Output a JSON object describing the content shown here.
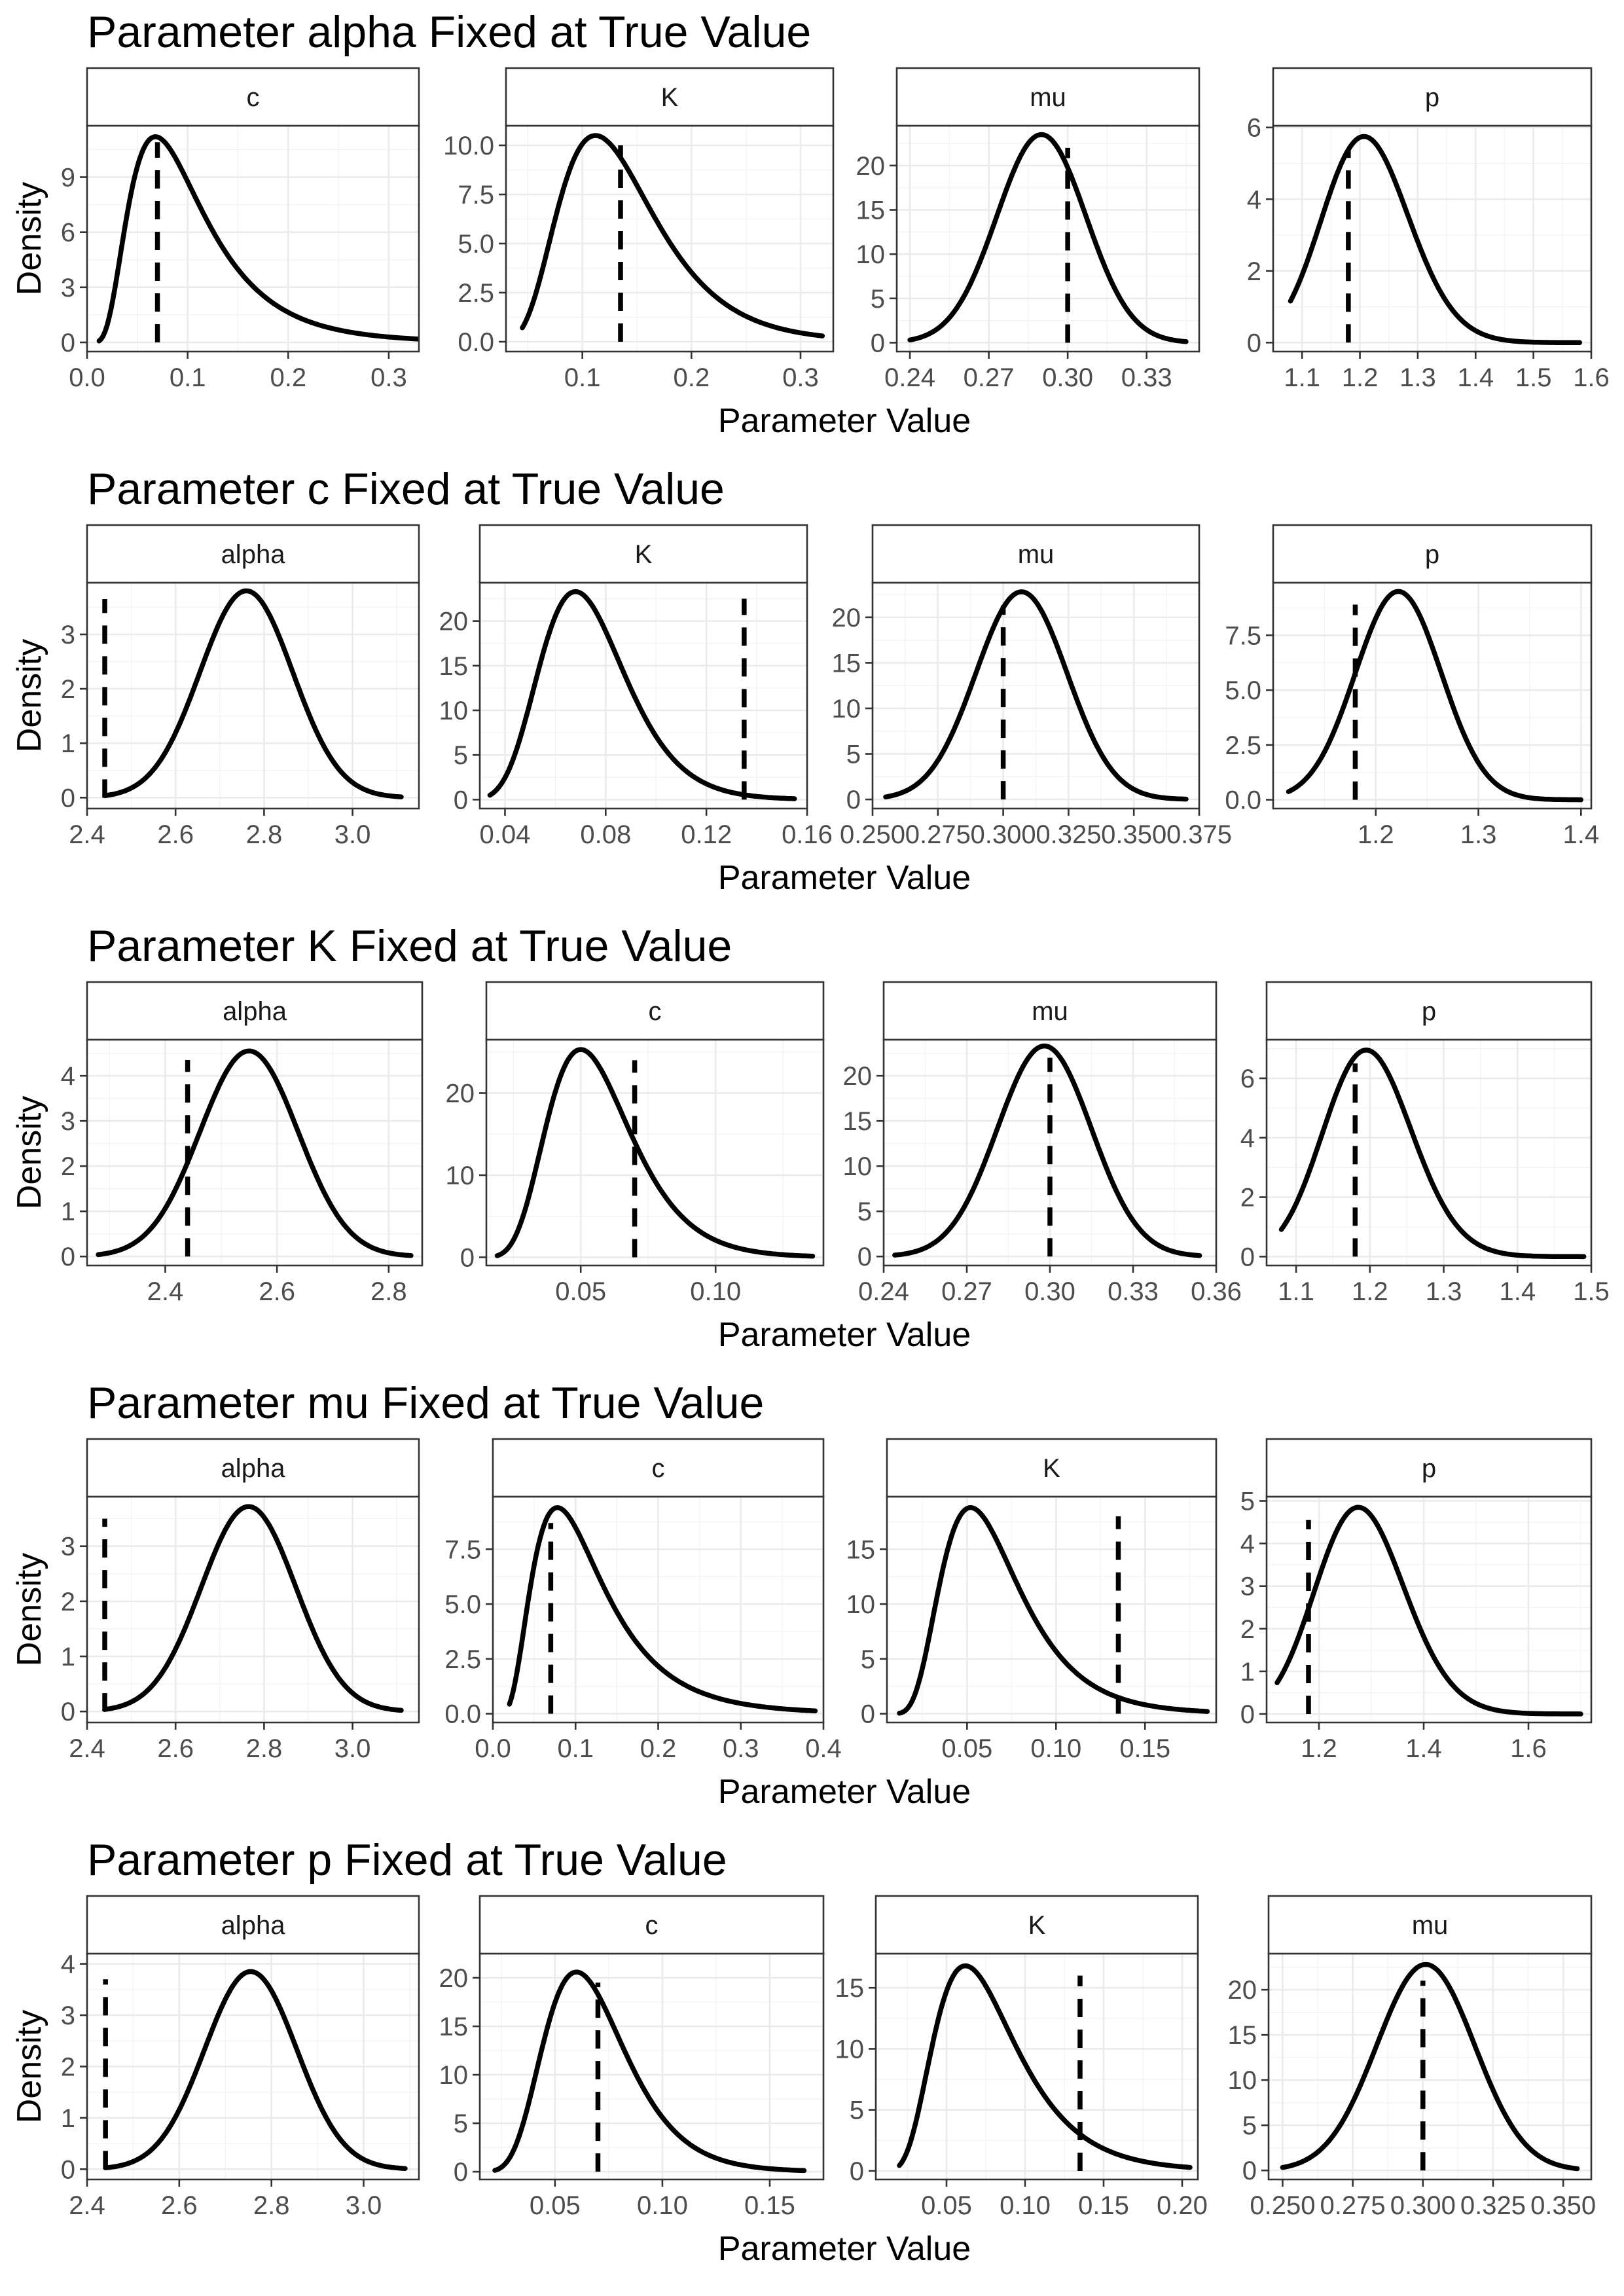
{
  "figure": {
    "x_axis_title": "Parameter Value",
    "y_axis_title": "Density"
  },
  "chart_data": [
    {
      "type": "line",
      "title": "Parameter alpha Fixed at True Value",
      "panels": [
        {
          "strip": "c",
          "xlim": [
            0.0,
            0.33
          ],
          "ylim": [
            -0.5,
            11.8
          ],
          "xticks": [
            0.0,
            0.1,
            0.2,
            0.3
          ],
          "xtick_labels": [
            "0.0",
            "0.1",
            "0.2",
            "0.3"
          ],
          "yticks": [
            0,
            3,
            6,
            9
          ],
          "ytick_labels": [
            "0",
            "3",
            "6",
            "9"
          ],
          "density": {
            "shape": "gamma",
            "mode": 0.068,
            "peak": 11.2,
            "sd": 0.045,
            "from": 0.012,
            "to": 0.33
          },
          "true_value": 0.07,
          "true_line_top": 10.9
        },
        {
          "strip": "K",
          "xlim": [
            0.03,
            0.33
          ],
          "ylim": [
            -0.5,
            11.0
          ],
          "xticks": [
            0.1,
            0.2,
            0.3
          ],
          "xtick_labels": [
            "0.1",
            "0.2",
            "0.3"
          ],
          "yticks": [
            0.0,
            2.5,
            5.0,
            7.5,
            10.0
          ],
          "ytick_labels": [
            "0.0",
            "2.5",
            "5.0",
            "7.5",
            "10.0"
          ],
          "density": {
            "shape": "gamma",
            "mode": 0.112,
            "peak": 10.5,
            "sd": 0.044,
            "from": 0.045,
            "to": 0.32
          },
          "true_value": 0.135,
          "true_line_top": 10.0
        },
        {
          "strip": "mu",
          "xlim": [
            0.235,
            0.35
          ],
          "ylim": [
            -1.0,
            24.5
          ],
          "xticks": [
            0.24,
            0.27,
            0.3,
            0.33
          ],
          "xtick_labels": [
            "0.24",
            "0.27",
            "0.30",
            "0.33"
          ],
          "yticks": [
            0,
            5,
            10,
            15,
            20
          ],
          "ytick_labels": [
            "0",
            "5",
            "10",
            "15",
            "20"
          ],
          "density": {
            "shape": "normal",
            "mode": 0.29,
            "peak": 23.5,
            "sd": 0.017,
            "from": 0.24,
            "to": 0.345
          },
          "true_value": 0.3,
          "true_line_top": 22.0
        },
        {
          "strip": "p",
          "xlim": [
            1.05,
            1.6
          ],
          "ylim": [
            -0.25,
            6.05
          ],
          "xticks": [
            1.1,
            1.2,
            1.3,
            1.4,
            1.5,
            1.6
          ],
          "xtick_labels": [
            "1.1",
            "1.2",
            "1.3",
            "1.4",
            "1.5",
            "1.6"
          ],
          "yticks": [
            0,
            2,
            4,
            6
          ],
          "ytick_labels": [
            "0",
            "2",
            "4",
            "6"
          ],
          "density": {
            "shape": "gamma",
            "mode": 1.207,
            "peak": 5.75,
            "sd": 0.075,
            "from": 1.08,
            "to": 1.58
          },
          "true_value": 1.18,
          "true_line_top": 5.4
        }
      ]
    },
    {
      "type": "line",
      "title": "Parameter c Fixed at True Value",
      "panels": [
        {
          "strip": "alpha",
          "xlim": [
            2.4,
            3.15
          ],
          "ylim": [
            -0.2,
            3.95
          ],
          "xticks": [
            2.4,
            2.6,
            2.8,
            3.0
          ],
          "xtick_labels": [
            "2.4",
            "2.6",
            "2.8",
            "3.0"
          ],
          "yticks": [
            0,
            1,
            2,
            3
          ],
          "ytick_labels": [
            "0",
            "1",
            "2",
            "3"
          ],
          "density": {
            "shape": "normal",
            "mode": 2.76,
            "peak": 3.8,
            "sd": 0.105,
            "from": 2.44,
            "to": 3.11
          },
          "true_value": 2.44,
          "true_line_top": 3.65
        },
        {
          "strip": "K",
          "xlim": [
            0.03,
            0.16
          ],
          "ylim": [
            -1.0,
            24.3
          ],
          "xticks": [
            0.04,
            0.08,
            0.12,
            0.16
          ],
          "xtick_labels": [
            "0.04",
            "0.08",
            "0.12",
            "0.16"
          ],
          "yticks": [
            0,
            5,
            10,
            15,
            20
          ],
          "ytick_labels": [
            "0",
            "5",
            "10",
            "15",
            "20"
          ],
          "density": {
            "shape": "gamma",
            "mode": 0.068,
            "peak": 23.3,
            "sd": 0.017,
            "from": 0.034,
            "to": 0.155
          },
          "true_value": 0.135,
          "true_line_top": 22.5
        },
        {
          "strip": "mu",
          "xlim": [
            0.25,
            0.375
          ],
          "ylim": [
            -1.0,
            23.8
          ],
          "xticks": [
            0.25,
            0.275,
            0.3,
            0.325,
            0.35,
            0.375
          ],
          "xtick_labels": [
            "0.250",
            "0.275",
            "0.300",
            "0.325",
            "0.350",
            "0.375"
          ],
          "yticks": [
            0,
            5,
            10,
            15,
            20
          ],
          "ytick_labels": [
            "0",
            "5",
            "10",
            "15",
            "20"
          ],
          "density": {
            "shape": "normal",
            "mode": 0.307,
            "peak": 22.8,
            "sd": 0.0175,
            "from": 0.255,
            "to": 0.37
          },
          "true_value": 0.3,
          "true_line_top": 21.3
        },
        {
          "strip": "p",
          "xlim": [
            1.1,
            1.41
          ],
          "ylim": [
            -0.4,
            9.9
          ],
          "xticks": [
            1.2,
            1.3,
            1.4
          ],
          "xtick_labels": [
            "1.2",
            "1.3",
            "1.4"
          ],
          "yticks": [
            0.0,
            2.5,
            5.0,
            7.5
          ],
          "ytick_labels": [
            "0.0",
            "2.5",
            "5.0",
            "7.5"
          ],
          "density": {
            "shape": "normal",
            "mode": 1.222,
            "peak": 9.5,
            "sd": 0.042,
            "from": 1.115,
            "to": 1.4
          },
          "true_value": 1.18,
          "true_line_top": 8.9
        }
      ]
    },
    {
      "type": "line",
      "title": "Parameter K Fixed at True Value",
      "panels": [
        {
          "strip": "alpha",
          "xlim": [
            2.26,
            2.86
          ],
          "ylim": [
            -0.2,
            4.8
          ],
          "xticks": [
            2.4,
            2.6,
            2.8
          ],
          "xtick_labels": [
            "2.4",
            "2.6",
            "2.8"
          ],
          "yticks": [
            0,
            1,
            2,
            3,
            4
          ],
          "ytick_labels": [
            "0",
            "1",
            "2",
            "3",
            "4"
          ],
          "density": {
            "shape": "normal",
            "mode": 2.55,
            "peak": 4.55,
            "sd": 0.088,
            "from": 2.28,
            "to": 2.84
          },
          "true_value": 2.44,
          "true_line_top": 4.35
        },
        {
          "strip": "c",
          "xlim": [
            0.015,
            0.14
          ],
          "ylim": [
            -1.0,
            26.5
          ],
          "xticks": [
            0.05,
            0.1
          ],
          "xtick_labels": [
            "0.05",
            "0.10"
          ],
          "yticks": [
            0,
            10,
            20
          ],
          "ytick_labels": [
            "0",
            "10",
            "20"
          ],
          "density": {
            "shape": "gamma",
            "mode": 0.05,
            "peak": 25.3,
            "sd": 0.0155,
            "from": 0.019,
            "to": 0.136
          },
          "true_value": 0.07,
          "true_line_top": 24.0
        },
        {
          "strip": "mu",
          "xlim": [
            0.24,
            0.36
          ],
          "ylim": [
            -1.0,
            24.0
          ],
          "xticks": [
            0.24,
            0.27,
            0.3,
            0.33,
            0.36
          ],
          "xtick_labels": [
            "0.24",
            "0.27",
            "0.30",
            "0.33",
            "0.36"
          ],
          "yticks": [
            0,
            5,
            10,
            15,
            20
          ],
          "ytick_labels": [
            "0",
            "5",
            "10",
            "15",
            "20"
          ],
          "density": {
            "shape": "normal",
            "mode": 0.298,
            "peak": 23.3,
            "sd": 0.017,
            "from": 0.244,
            "to": 0.354
          },
          "true_value": 0.3,
          "true_line_top": 22.0
        },
        {
          "strip": "p",
          "xlim": [
            1.06,
            1.5
          ],
          "ylim": [
            -0.3,
            7.3
          ],
          "xticks": [
            1.1,
            1.2,
            1.3,
            1.4,
            1.5
          ],
          "xtick_labels": [
            "1.1",
            "1.2",
            "1.3",
            "1.4",
            "1.5"
          ],
          "yticks": [
            0,
            2,
            4,
            6
          ],
          "ytick_labels": [
            "0",
            "2",
            "4",
            "6"
          ],
          "density": {
            "shape": "gamma",
            "mode": 1.195,
            "peak": 6.95,
            "sd": 0.06,
            "from": 1.08,
            "to": 1.49
          },
          "true_value": 1.18,
          "true_line_top": 6.5
        }
      ]
    },
    {
      "type": "line",
      "title": "Parameter mu Fixed at True Value",
      "panels": [
        {
          "strip": "alpha",
          "xlim": [
            2.4,
            3.15
          ],
          "ylim": [
            -0.2,
            3.9
          ],
          "xticks": [
            2.4,
            2.6,
            2.8,
            3.0
          ],
          "xtick_labels": [
            "2.4",
            "2.6",
            "2.8",
            "3.0"
          ],
          "yticks": [
            0,
            1,
            2,
            3
          ],
          "ytick_labels": [
            "0",
            "1",
            "2",
            "3"
          ],
          "density": {
            "shape": "normal",
            "mode": 2.765,
            "peak": 3.72,
            "sd": 0.107,
            "from": 2.44,
            "to": 3.11
          },
          "true_value": 2.44,
          "true_line_top": 3.5
        },
        {
          "strip": "c",
          "xlim": [
            0.0,
            0.4
          ],
          "ylim": [
            -0.4,
            9.9
          ],
          "xticks": [
            0.0,
            0.1,
            0.2,
            0.3,
            0.4
          ],
          "xtick_labels": [
            "0.0",
            "0.1",
            "0.2",
            "0.3",
            "0.4"
          ],
          "yticks": [
            0.0,
            2.5,
            5.0,
            7.5
          ],
          "ytick_labels": [
            "0.0",
            "2.5",
            "5.0",
            "7.5"
          ],
          "density": {
            "shape": "gamma",
            "mode": 0.078,
            "peak": 9.4,
            "sd": 0.055,
            "from": 0.02,
            "to": 0.39
          },
          "true_value": 0.07,
          "true_line_top": 8.7
        },
        {
          "strip": "K",
          "xlim": [
            0.005,
            0.19
          ],
          "ylim": [
            -0.8,
            19.8
          ],
          "xticks": [
            0.05,
            0.1,
            0.15
          ],
          "xtick_labels": [
            "0.05",
            "0.10",
            "0.15"
          ],
          "yticks": [
            0,
            5,
            10,
            15
          ],
          "ytick_labels": [
            "0",
            "5",
            "10",
            "15"
          ],
          "density": {
            "shape": "gamma",
            "mode": 0.052,
            "peak": 18.8,
            "sd": 0.022,
            "from": 0.012,
            "to": 0.185
          },
          "true_value": 0.135,
          "true_line_top": 18.0
        },
        {
          "strip": "p",
          "xlim": [
            1.1,
            1.72
          ],
          "ylim": [
            -0.2,
            5.1
          ],
          "xticks": [
            1.2,
            1.4,
            1.6
          ],
          "xtick_labels": [
            "1.2",
            "1.4",
            "1.6"
          ],
          "yticks": [
            0,
            1,
            2,
            3,
            4,
            5
          ],
          "ytick_labels": [
            "0",
            "1",
            "2",
            "3",
            "4",
            "5"
          ],
          "density": {
            "shape": "gamma",
            "mode": 1.275,
            "peak": 4.85,
            "sd": 0.085,
            "from": 1.12,
            "to": 1.7
          },
          "true_value": 1.18,
          "true_line_top": 4.55
        }
      ]
    },
    {
      "type": "line",
      "title": "Parameter p Fixed at True Value",
      "panels": [
        {
          "strip": "alpha",
          "xlim": [
            2.4,
            3.12
          ],
          "ylim": [
            -0.2,
            4.2
          ],
          "xticks": [
            2.4,
            2.6,
            2.8,
            3.0
          ],
          "xtick_labels": [
            "2.4",
            "2.6",
            "2.8",
            "3.0"
          ],
          "yticks": [
            0,
            1,
            2,
            3,
            4
          ],
          "ytick_labels": [
            "0",
            "1",
            "2",
            "3",
            "4"
          ],
          "density": {
            "shape": "normal",
            "mode": 2.755,
            "peak": 3.85,
            "sd": 0.1,
            "from": 2.44,
            "to": 3.09
          },
          "true_value": 2.44,
          "true_line_top": 3.7
        },
        {
          "strip": "c",
          "xlim": [
            0.015,
            0.175
          ],
          "ylim": [
            -0.8,
            22.5
          ],
          "xticks": [
            0.05,
            0.1,
            0.15
          ],
          "xtick_labels": [
            "0.05",
            "0.10",
            "0.15"
          ],
          "yticks": [
            0,
            5,
            10,
            15,
            20
          ],
          "ytick_labels": [
            "0",
            "5",
            "10",
            "15",
            "20"
          ],
          "density": {
            "shape": "gamma",
            "mode": 0.06,
            "peak": 20.6,
            "sd": 0.019,
            "from": 0.022,
            "to": 0.166
          },
          "true_value": 0.07,
          "true_line_top": 19.5
        },
        {
          "strip": "K",
          "xlim": [
            0.005,
            0.21
          ],
          "ylim": [
            -0.7,
            17.8
          ],
          "xticks": [
            0.05,
            0.1,
            0.15,
            0.2
          ],
          "xtick_labels": [
            "0.05",
            "0.10",
            "0.15",
            "0.20"
          ],
          "yticks": [
            0,
            5,
            10,
            15
          ],
          "ytick_labels": [
            "0",
            "5",
            "10",
            "15"
          ],
          "density": {
            "shape": "gamma",
            "mode": 0.062,
            "peak": 16.8,
            "sd": 0.026,
            "from": 0.02,
            "to": 0.205
          },
          "true_value": 0.135,
          "true_line_top": 16.0
        },
        {
          "strip": "mu",
          "xlim": [
            0.245,
            0.36
          ],
          "ylim": [
            -1.0,
            24.0
          ],
          "xticks": [
            0.25,
            0.275,
            0.3,
            0.325,
            0.35
          ],
          "xtick_labels": [
            "0.250",
            "0.275",
            "0.300",
            "0.325",
            "0.350"
          ],
          "yticks": [
            0,
            5,
            10,
            15,
            20
          ],
          "ytick_labels": [
            "0",
            "5",
            "10",
            "15",
            "20"
          ],
          "density": {
            "shape": "normal",
            "mode": 0.301,
            "peak": 22.8,
            "sd": 0.0175,
            "from": 0.25,
            "to": 0.355
          },
          "true_value": 0.3,
          "true_line_top": 21.0
        }
      ]
    }
  ]
}
